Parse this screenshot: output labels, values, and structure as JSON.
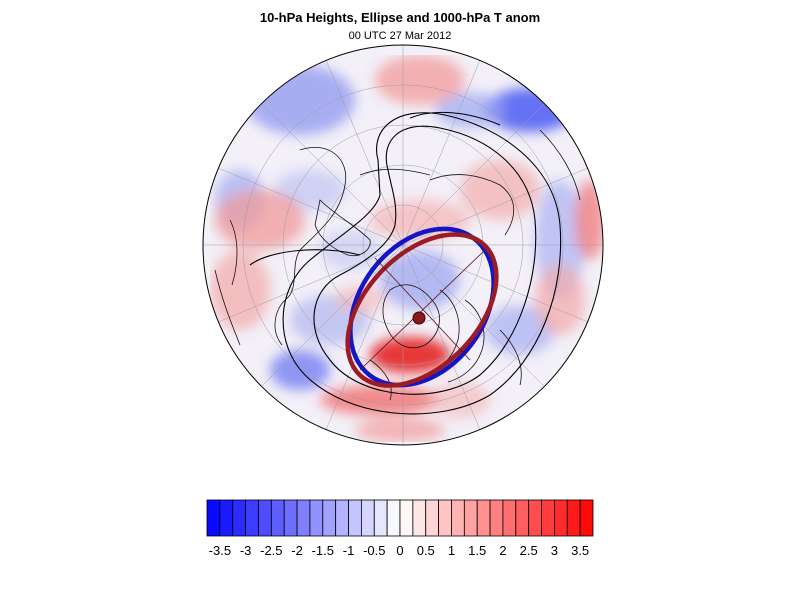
{
  "title": "10-hPa Heights, Ellipse and 1000-hPa T anom",
  "subtitle": "00 UTC 27 Mar 2012",
  "colorbar": {
    "min": -3.75,
    "max": 3.75,
    "step": 0.25,
    "tick_labels": [
      "-3.5",
      "-3",
      "-2.5",
      "-2",
      "-1.5",
      "-1",
      "-0.5",
      "0",
      "0.5",
      "1",
      "1.5",
      "2",
      "2.5",
      "3",
      "3.5"
    ],
    "tick_values": [
      -3.5,
      -3,
      -2.5,
      -2,
      -1.5,
      -1,
      -0.5,
      0,
      0.5,
      1,
      1.5,
      2,
      2.5,
      3,
      3.5
    ],
    "cold_color": "#0000ff",
    "neutral_color": "#ffffff",
    "warm_color": "#ff0000"
  },
  "colors": {
    "vortex_ellipse": "#9b1c24",
    "second_ellipse": "#1515c8",
    "height_contour": "#000000",
    "coastline": "#111111",
    "graticule": "#9a9aa8"
  }
}
